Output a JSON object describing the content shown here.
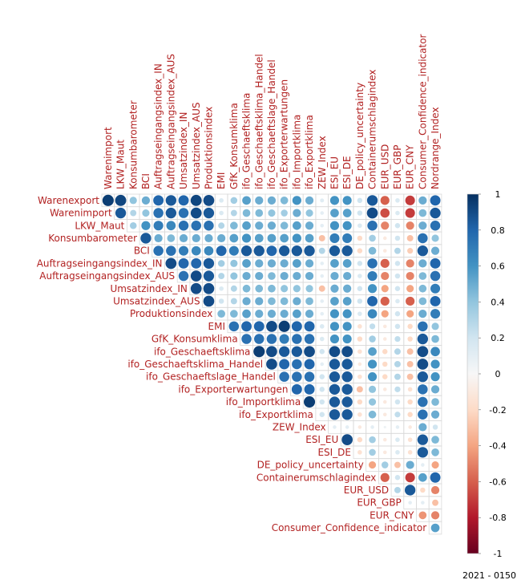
{
  "chart_data": {
    "type": "heatmap",
    "variables": [
      "Warenexport",
      "Warenimport",
      "LKW_Maut",
      "Konsumbarometer",
      "BCI",
      "Auftragseingangsindex_IN",
      "Auftragseingangsindex_AUS",
      "Umsatzindex_IN",
      "Umsatzindex_AUS",
      "Produktionsindex",
      "EMI",
      "GfK_Konsumklima",
      "ifo_Geschaeftsklima",
      "ifo_Geschaeftsklima_Handel",
      "ifo_Geschaeftslage_Handel",
      "ifo_Exporterwartungen",
      "ifo_Importklima",
      "ifo_Exportklima",
      "ZEW_Index",
      "ESI_EU",
      "ESI_DE",
      "DE_policy_uncertainty",
      "Containerumschlagindex",
      "EUR_USD",
      "EUR_GBP",
      "EUR_CNY",
      "Consumer_Confidence_indicator",
      "Nordrange_Index"
    ],
    "columns": [
      "Warenimport",
      "LKW_Maut",
      "Konsumbarometer",
      "BCI",
      "Auftragseingangsindex_IN",
      "Auftragseingangsindex_AUS",
      "Umsatzindex_IN",
      "Umsatzindex_AUS",
      "Produktionsindex",
      "EMI",
      "GfK_Konsumklima",
      "ifo_Geschaeftsklima",
      "ifo_Geschaeftsklima_Handel",
      "ifo_Geschaeftslage_Handel",
      "ifo_Exporterwartungen",
      "ifo_Importklima",
      "ifo_Exportklima",
      "ZEW_Index",
      "ESI_EU",
      "ESI_DE",
      "DE_policy_uncertainty",
      "Containerumschlagindex",
      "EUR_USD",
      "EUR_GBP",
      "EUR_CNY",
      "Consumer_Confidence_indicator",
      "Nordrange_Index"
    ],
    "rows": [
      "Warenexport",
      "Warenimport",
      "LKW_Maut",
      "Konsumbarometer",
      "BCI",
      "Auftragseingangsindex_IN",
      "Auftragseingangsindex_AUS",
      "Umsatzindex_IN",
      "Umsatzindex_AUS",
      "Produktionsindex",
      "EMI",
      "GfK_Konsumklima",
      "ifo_Geschaeftsklima",
      "ifo_Geschaeftsklima_Handel",
      "ifo_Geschaeftslage_Handel",
      "ifo_Exporterwartungen",
      "ifo_Importklima",
      "ifo_Exportklima",
      "ZEW_Index",
      "ESI_EU",
      "ESI_DE",
      "DE_policy_uncertainty",
      "Containerumschlagindex",
      "EUR_USD",
      "EUR_GBP",
      "EUR_CNY",
      "Consumer_Confidence_indicator"
    ],
    "values": [
      [
        0.95,
        0.92,
        0.4,
        0.5,
        0.8,
        0.85,
        0.8,
        0.92,
        0.9,
        0.15,
        0.35,
        0.55,
        0.5,
        0.5,
        0.45,
        0.6,
        0.5,
        0.12,
        0.6,
        0.6,
        0.2,
        0.85,
        -0.6,
        0.15,
        -0.7,
        0.5,
        0.8
      ],
      [
        0.85,
        0.3,
        0.4,
        0.75,
        0.85,
        0.75,
        0.9,
        0.85,
        0.15,
        0.3,
        0.45,
        0.45,
        0.4,
        0.35,
        0.5,
        0.4,
        0.1,
        0.55,
        0.55,
        0.2,
        0.9,
        -0.65,
        0.15,
        -0.7,
        0.45,
        0.85
      ],
      [
        0.35,
        0.6,
        0.7,
        0.65,
        0.75,
        0.75,
        0.75,
        0.3,
        0.45,
        0.55,
        0.5,
        0.5,
        0.45,
        0.55,
        0.5,
        0.1,
        0.6,
        0.6,
        0.15,
        0.75,
        -0.5,
        0.2,
        -0.5,
        0.5,
        0.75
      ],
      [
        0.85,
        0.5,
        0.45,
        0.5,
        0.5,
        0.5,
        0.5,
        0.55,
        0.6,
        0.55,
        0.55,
        0.55,
        0.6,
        0.55,
        -0.3,
        0.7,
        0.7,
        -0.2,
        0.35,
        -0.1,
        0.2,
        -0.3,
        0.75,
        0.4
      ],
      [
        0.75,
        0.75,
        0.7,
        0.65,
        0.65,
        0.8,
        0.7,
        0.85,
        0.85,
        0.8,
        0.85,
        0.85,
        0.85,
        0.3,
        0.85,
        0.85,
        -0.2,
        0.45,
        -0.1,
        0.3,
        -0.25,
        0.85,
        0.5
      ],
      [
        0.9,
        0.8,
        0.8,
        0.85,
        0.35,
        0.4,
        0.55,
        0.5,
        0.5,
        0.5,
        0.55,
        0.5,
        0.1,
        0.55,
        0.55,
        0.2,
        0.75,
        -0.6,
        0.2,
        -0.5,
        0.5,
        0.8
      ],
      [
        0.75,
        0.9,
        0.85,
        0.3,
        0.4,
        0.5,
        0.5,
        0.45,
        0.5,
        0.5,
        0.5,
        0.1,
        0.5,
        0.5,
        0.15,
        0.7,
        -0.5,
        0.2,
        -0.5,
        0.45,
        0.75
      ],
      [
        0.9,
        0.9,
        0.15,
        0.3,
        0.45,
        0.45,
        0.45,
        0.4,
        0.4,
        0.4,
        -0.3,
        0.5,
        0.5,
        0.2,
        0.6,
        -0.4,
        0.2,
        -0.4,
        0.45,
        0.7
      ],
      [
        0.9,
        0.2,
        0.3,
        0.5,
        0.5,
        0.45,
        0.45,
        0.5,
        0.45,
        0.1,
        0.55,
        0.55,
        0.2,
        0.8,
        -0.6,
        0.15,
        -0.6,
        0.45,
        0.8
      ],
      [
        0.45,
        0.45,
        0.55,
        0.5,
        0.5,
        0.5,
        0.55,
        0.5,
        0.1,
        0.6,
        0.6,
        0.15,
        0.65,
        -0.4,
        0.2,
        -0.4,
        0.5,
        0.7
      ],
      [
        0.75,
        0.8,
        0.8,
        0.9,
        0.95,
        0.8,
        0.8,
        0.15,
        0.6,
        0.6,
        -0.15,
        0.25,
        -0.1,
        0.2,
        -0.2,
        0.75,
        0.4
      ],
      [
        0.75,
        0.75,
        0.75,
        0.7,
        0.75,
        0.75,
        0.15,
        0.6,
        0.6,
        -0.2,
        0.35,
        -0.1,
        0.25,
        -0.2,
        0.85,
        0.45
      ],
      [
        0.95,
        0.9,
        0.85,
        0.85,
        0.9,
        0.2,
        0.9,
        0.9,
        -0.15,
        0.55,
        -0.2,
        0.3,
        -0.3,
        0.9,
        0.65
      ],
      [
        0.9,
        0.8,
        0.75,
        0.8,
        0.1,
        0.85,
        0.85,
        -0.1,
        0.6,
        -0.2,
        0.3,
        -0.3,
        0.9,
        0.6
      ],
      [
        0.75,
        0.75,
        0.75,
        0.2,
        0.85,
        0.85,
        -0.15,
        0.6,
        -0.2,
        0.3,
        -0.3,
        0.85,
        0.6
      ],
      [
        0.8,
        0.8,
        0.2,
        0.85,
        0.85,
        -0.3,
        0.4,
        -0.1,
        0.25,
        -0.15,
        0.75,
        0.5
      ],
      [
        0.95,
        0.2,
        0.85,
        0.85,
        -0.2,
        0.4,
        -0.1,
        0.2,
        -0.2,
        0.75,
        0.45
      ],
      [
        0.2,
        0.85,
        0.85,
        -0.15,
        0.45,
        -0.1,
        0.25,
        -0.2,
        0.75,
        0.5
      ],
      [
        0.1,
        0.1,
        -0.1,
        0.1,
        0.05,
        0.1,
        -0.1,
        0.5,
        0.2
      ],
      [
        0.9,
        -0.2,
        0.35,
        -0.1,
        0.15,
        -0.15,
        0.85,
        0.45
      ],
      [
        -0.15,
        0.35,
        -0.1,
        0.15,
        -0.15,
        0.85,
        0.45
      ],
      [
        -0.4,
        0.35,
        -0.3,
        0.5,
        0.1,
        -0.4
      ],
      [
        -0.6,
        0.2,
        -0.7,
        0.55,
        0.8
      ],
      [
        0.3,
        0.85,
        -0.2,
        -0.5
      ],
      [
        0.1,
        0.1,
        -0.3
      ],
      [
        -0.45,
        -0.5
      ],
      [
        0.55
      ]
    ],
    "colorbar": {
      "ticks": [
        1,
        0.8,
        0.6,
        0.4,
        0.2,
        0,
        -0.2,
        -0.4,
        -0.6,
        -0.8,
        -1
      ],
      "range": [
        -1,
        1
      ]
    },
    "legend": "right",
    "grid": true
  },
  "source_label": "2021 - 0150"
}
